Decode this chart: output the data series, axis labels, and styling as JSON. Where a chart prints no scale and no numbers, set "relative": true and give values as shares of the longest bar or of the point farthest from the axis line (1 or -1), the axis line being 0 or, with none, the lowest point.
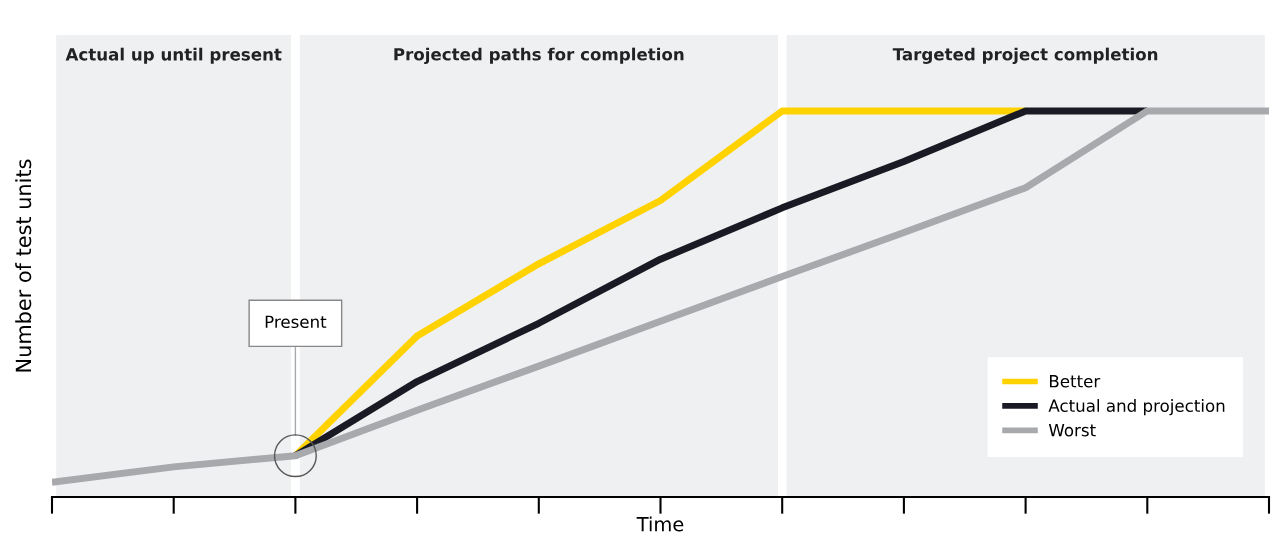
{
  "chart_data": {
    "type": "line",
    "relative": true,
    "xlabel": "Time",
    "ylabel": "Number of test units",
    "categories": [
      null,
      null,
      null,
      null,
      null,
      null,
      null,
      null,
      null,
      null,
      null
    ],
    "grid": false,
    "legend": "bottom right",
    "marker": "none",
    "line_style": "solid",
    "annotations": [
      "Actual up until present",
      "Projected paths for completion",
      "Targeted project completion",
      "Present"
    ],
    "series": [
      {
        "name": "Better",
        "color": "#ffd200",
        "values": [
          null,
          null,
          0.107,
          0.417,
          0.604,
          0.768,
          1.0,
          1.0,
          1.0,
          null,
          null
        ]
      },
      {
        "name": "Actual and projection",
        "color": "#1a1a24",
        "values": [
          null,
          null,
          0.107,
          0.299,
          0.45,
          0.616,
          0.749,
          0.869,
          1.0,
          1.0,
          null
        ]
      },
      {
        "name": "Worst",
        "color": "#a7a9ac",
        "values": [
          0.038,
          0.078,
          0.107,
          0.225,
          0.339,
          0.455,
          0.571,
          0.685,
          0.801,
          1.0,
          1.0
        ]
      }
    ]
  }
}
